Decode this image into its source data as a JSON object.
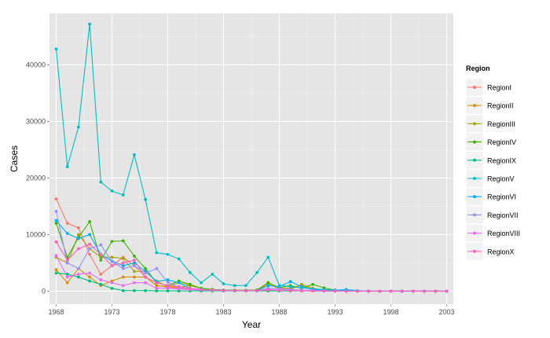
{
  "chart_data": {
    "type": "line",
    "xlabel": "Year",
    "ylabel": "Cases",
    "xlim": [
      1967.4,
      2003.6
    ],
    "ylim": [
      -2300,
      49100
    ],
    "x_ticks": [
      1968,
      1973,
      1978,
      1983,
      1988,
      1993,
      1998,
      2003
    ],
    "y_ticks": [
      0,
      10000,
      20000,
      30000,
      40000
    ],
    "y_tick_labels": [
      "0",
      "10000",
      "20000",
      "30000",
      "40000"
    ],
    "x_tick_labels": [
      "1968",
      "1973",
      "1978",
      "1983",
      "1988",
      "1993",
      "1998",
      "2003"
    ],
    "grid": true,
    "markers": true,
    "legend": {
      "title": "Region",
      "position": "right"
    },
    "x": [
      1968,
      1969,
      1970,
      1971,
      1972,
      1973,
      1974,
      1975,
      1976,
      1977,
      1978,
      1979,
      1980,
      1981,
      1982,
      1983,
      1984,
      1985,
      1986,
      1987,
      1988,
      1989,
      1990,
      1991,
      1992,
      1993,
      1994,
      1995,
      1996,
      1997,
      1998,
      1999,
      2000,
      2001,
      2002,
      2003
    ],
    "series": [
      {
        "name": "RegionI",
        "color": "#F8766D",
        "values": [
          16300,
          12000,
          11200,
          6500,
          3000,
          4500,
          6000,
          4500,
          2500,
          1000,
          700,
          500,
          400,
          300,
          200,
          150,
          100,
          100,
          100,
          150,
          100,
          100,
          80,
          50,
          30,
          20,
          10,
          0,
          0,
          0,
          0,
          0,
          0,
          0,
          0,
          0
        ]
      },
      {
        "name": "RegionII",
        "color": "#D89000",
        "values": [
          3800,
          1500,
          4000,
          2500,
          1000,
          1800,
          2500,
          2500,
          2500,
          1000,
          800,
          700,
          1000,
          500,
          300,
          200,
          150,
          150,
          100,
          1200,
          500,
          500,
          1000,
          300,
          200,
          100,
          50,
          0,
          0,
          0,
          0,
          0,
          0,
          0,
          0,
          0
        ]
      },
      {
        "name": "RegionIII",
        "color": "#A3A500",
        "values": [
          6000,
          5000,
          10000,
          7500,
          6000,
          6000,
          5800,
          3500,
          3500,
          1800,
          800,
          1500,
          1000,
          500,
          300,
          200,
          150,
          150,
          200,
          1500,
          500,
          300,
          1200,
          500,
          200,
          100,
          50,
          0,
          0,
          0,
          0,
          0,
          0,
          0,
          0,
          0
        ]
      },
      {
        "name": "RegionIV",
        "color": "#39B600",
        "values": [
          12000,
          6000,
          9500,
          12300,
          5500,
          8800,
          8900,
          6200,
          4000,
          1500,
          1000,
          1800,
          1200,
          500,
          300,
          200,
          150,
          150,
          200,
          1500,
          600,
          1000,
          500,
          1200,
          600,
          200,
          50,
          0,
          0,
          0,
          0,
          0,
          0,
          0,
          0,
          0
        ]
      },
      {
        "name": "RegionIX",
        "color": "#00BF7D",
        "values": [
          3200,
          3000,
          2500,
          1800,
          1200,
          500,
          100,
          100,
          100,
          50,
          50,
          50,
          50,
          50,
          50,
          50,
          50,
          50,
          50,
          50,
          50,
          50,
          50,
          50,
          50,
          20,
          10,
          0,
          0,
          0,
          0,
          0,
          0,
          0,
          0,
          0
        ]
      },
      {
        "name": "RegionV",
        "color": "#00BFC4",
        "values": [
          42800,
          22000,
          29000,
          47200,
          19300,
          17700,
          17000,
          24100,
          16200,
          6800,
          6500,
          5700,
          3300,
          1500,
          3000,
          1300,
          1000,
          1000,
          3300,
          6000,
          1000,
          800,
          600,
          400,
          300,
          200,
          100,
          0,
          0,
          0,
          0,
          0,
          0,
          0,
          0,
          0
        ]
      },
      {
        "name": "RegionVI",
        "color": "#00B0F6",
        "values": [
          12500,
          10200,
          9300,
          10000,
          6500,
          5300,
          4500,
          5000,
          3500,
          1700,
          2000,
          1500,
          500,
          300,
          200,
          150,
          100,
          100,
          100,
          1000,
          800,
          1700,
          800,
          300,
          200,
          150,
          300,
          100,
          0,
          0,
          0,
          0,
          0,
          0,
          0,
          0
        ]
      },
      {
        "name": "RegionVII",
        "color": "#9590FF",
        "values": [
          14100,
          5000,
          4000,
          7500,
          8200,
          5200,
          4000,
          4500,
          3200,
          4000,
          1600,
          700,
          500,
          300,
          200,
          150,
          100,
          100,
          100,
          500,
          400,
          300,
          200,
          150,
          100,
          50,
          20,
          0,
          0,
          0,
          0,
          0,
          0,
          0,
          0,
          0
        ]
      },
      {
        "name": "RegionVIII",
        "color": "#E76BF3",
        "values": [
          6300,
          2500,
          3000,
          3200,
          2000,
          1500,
          1000,
          1500,
          1500,
          500,
          500,
          400,
          300,
          200,
          150,
          100,
          100,
          100,
          100,
          300,
          200,
          150,
          100,
          50,
          30,
          20,
          10,
          0,
          0,
          0,
          0,
          0,
          0,
          0,
          0,
          0
        ]
      },
      {
        "name": "RegionX",
        "color": "#FF62BC",
        "values": [
          8700,
          5500,
          7500,
          8300,
          6500,
          4500,
          5000,
          5500,
          2500,
          1500,
          1000,
          800,
          500,
          300,
          200,
          150,
          100,
          100,
          100,
          200,
          150,
          100,
          80,
          50,
          30,
          20,
          10,
          0,
          0,
          0,
          0,
          0,
          0,
          0,
          0,
          0
        ]
      }
    ]
  }
}
